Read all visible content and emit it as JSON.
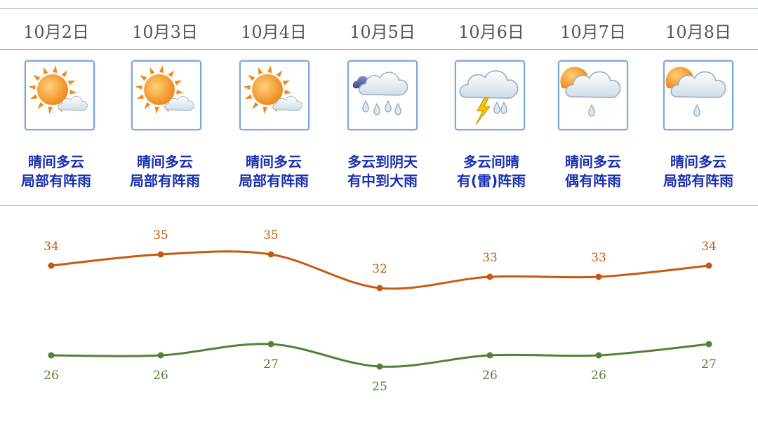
{
  "days": [
    {
      "date": "10月2日",
      "icon": "sun-cloud-icon",
      "desc_line1": "晴间多云",
      "desc_line2": "局部有阵雨"
    },
    {
      "date": "10月3日",
      "icon": "sun-cloud-icon",
      "desc_line1": "晴间多云",
      "desc_line2": "局部有阵雨"
    },
    {
      "date": "10月4日",
      "icon": "sun-cloud-icon",
      "desc_line1": "晴间多云",
      "desc_line2": "局部有阵雨"
    },
    {
      "date": "10月5日",
      "icon": "heavy-rain-icon",
      "desc_line1": "多云到阴天",
      "desc_line2": "有中到大雨"
    },
    {
      "date": "10月6日",
      "icon": "thunderstorm-icon",
      "desc_line1": "多云间晴",
      "desc_line2": "有(雷)阵雨"
    },
    {
      "date": "10月7日",
      "icon": "sun-cloud-rain-icon",
      "desc_line1": "晴间多云",
      "desc_line2": "偶有阵雨"
    },
    {
      "date": "10月8日",
      "icon": "sun-cloud-rain-icon",
      "desc_line1": "晴间多云",
      "desc_line2": "局部有阵雨"
    }
  ],
  "colors": {
    "high": "#c55a11",
    "low": "#538135",
    "desc_text": "#1a2fb0",
    "border": "#7aa6e0"
  },
  "chart_data": {
    "type": "line",
    "categories": [
      "10月2日",
      "10月3日",
      "10月4日",
      "10月5日",
      "10月6日",
      "10月7日",
      "10月8日"
    ],
    "series": [
      {
        "values": [
          34,
          35,
          35,
          32,
          33,
          33,
          34
        ],
        "color": "#c55a11"
      },
      {
        "values": [
          26,
          26,
          27,
          25,
          26,
          26,
          27
        ],
        "color": "#538135"
      }
    ],
    "title": "",
    "xlabel": "",
    "ylabel": "",
    "ylim": [
      22,
      37
    ],
    "grid": false
  }
}
